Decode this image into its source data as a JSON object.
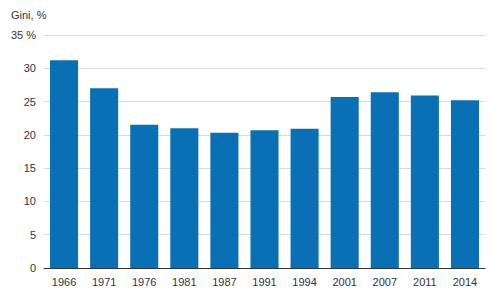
{
  "chart_data": {
    "type": "bar",
    "ylabel": "Gini, %",
    "categories": [
      "1966",
      "1971",
      "1976",
      "1981",
      "1987",
      "1991",
      "1994",
      "2001",
      "2007",
      "2011",
      "2014"
    ],
    "values": [
      31.2,
      27.0,
      21.5,
      21.0,
      20.3,
      20.7,
      20.9,
      25.7,
      26.4,
      25.9,
      25.2
    ],
    "color": "#0a70b5",
    "ylim": [
      0,
      35
    ],
    "yticks": [
      0,
      5,
      10,
      15,
      20,
      25,
      30,
      {
        "value": 35,
        "label": "35 %"
      }
    ],
    "grid": true
  }
}
